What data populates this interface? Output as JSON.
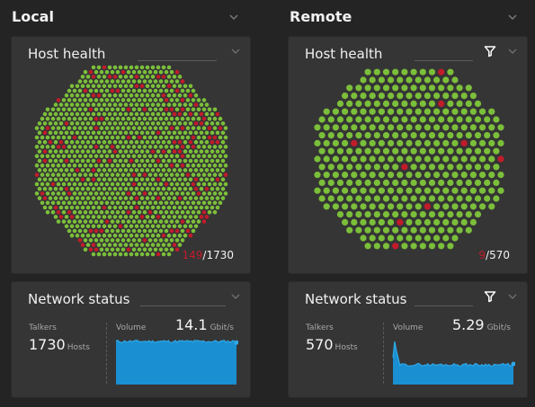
{
  "colors": {
    "healthy": "#7bbf3a",
    "unhealthy": "#c21b2b",
    "volume": "#1a8fd1",
    "volume_line": "#2fa8e8"
  },
  "icons": {
    "collapse": "chevron-down-icon",
    "filter": "filter-icon"
  },
  "local": {
    "title": "Local",
    "host_health": {
      "title": "Host health",
      "unhealthy": "149",
      "total": "/1730"
    },
    "network_status": {
      "title": "Network status",
      "talkers_label": "Talkers",
      "talkers_value": "1730",
      "talkers_unit": "Hosts",
      "volume_label": "Volume",
      "volume_value": "14.1",
      "volume_unit": "Gbit/s"
    }
  },
  "remote": {
    "title": "Remote",
    "host_health": {
      "title": "Host health",
      "unhealthy": "9",
      "total": "/570"
    },
    "network_status": {
      "title": "Network status",
      "talkers_label": "Talkers",
      "talkers_value": "570",
      "talkers_unit": "Hosts",
      "volume_label": "Volume",
      "volume_value": "5.29",
      "volume_unit": "Gbit/s"
    }
  }
}
